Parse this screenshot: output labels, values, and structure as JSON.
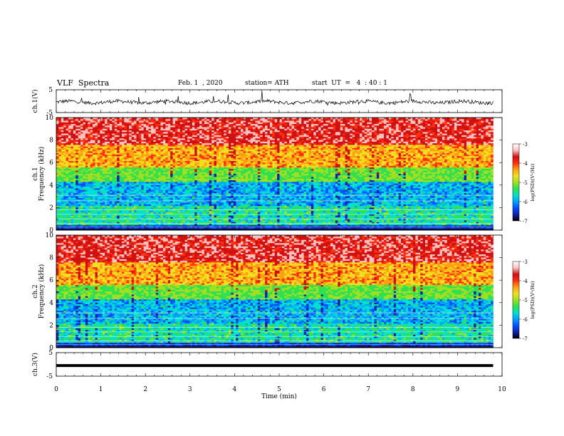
{
  "header": {
    "title": "VLF  Spectra",
    "date": "Feb. 1  , 2020",
    "station": "station= ATH",
    "start": "start  UT  =   4  : 40 : 1"
  },
  "colors": {
    "scale": [
      "#000000",
      "#1020b0",
      "#0050ff",
      "#00a0ff",
      "#00e0d0",
      "#30e050",
      "#a0e020",
      "#f0e020",
      "#ffa010",
      "#ff3010",
      "#d01010",
      "#ffc0c0",
      "#ffffff"
    ]
  },
  "chart_data": [
    {
      "type": "line",
      "name": "ch1-waveform",
      "ylabel": "ch.1(V)",
      "yticks": [
        "5",
        "-5"
      ],
      "ylim": [
        -5,
        5
      ],
      "xlim": [
        0,
        10
      ],
      "samples": 620,
      "baseline": -0.4,
      "x_end": 9.8
    },
    {
      "type": "heatmap",
      "name": "ch1-spectrogram",
      "ylabel_channel": "ch.1",
      "ylabel": "Frequency  (kHz)",
      "yticks": [
        "10",
        "8",
        "6",
        "4",
        "2",
        "0"
      ],
      "ylim": [
        0,
        10
      ],
      "xlim": [
        0,
        10
      ],
      "x_end": 9.8,
      "colorbar": {
        "label": "log(PSD)(V²/Hz)",
        "ticks": [
          "-3",
          "-4",
          "-5",
          "-6",
          "-7"
        ],
        "range": [
          -7,
          -3
        ]
      }
    },
    {
      "type": "heatmap",
      "name": "ch2-spectrogram",
      "ylabel_channel": "ch.2",
      "ylabel": "Frequency  (kHz)",
      "yticks": [
        "10",
        "8",
        "6",
        "4",
        "2",
        "0"
      ],
      "ylim": [
        0,
        10
      ],
      "xlim": [
        0,
        10
      ],
      "x_end": 9.8,
      "colorbar": {
        "label": "log(PSD)(V²/Hz)",
        "ticks": [
          "-3",
          "-4",
          "-5",
          "-6",
          "-7"
        ],
        "range": [
          -7,
          -3
        ]
      }
    },
    {
      "type": "line",
      "name": "ch3-waveform",
      "ylabel": "ch.3(V)",
      "yticks": [
        "5",
        "-5"
      ],
      "ylim": [
        -5,
        5
      ],
      "xlim": [
        0,
        10
      ],
      "constant": -0.5,
      "x_end": 9.8
    }
  ],
  "x_axis": {
    "label": "Time  (min)",
    "ticks": [
      "0",
      "1",
      "2",
      "3",
      "4",
      "5",
      "6",
      "7",
      "8",
      "9",
      "10"
    ]
  }
}
